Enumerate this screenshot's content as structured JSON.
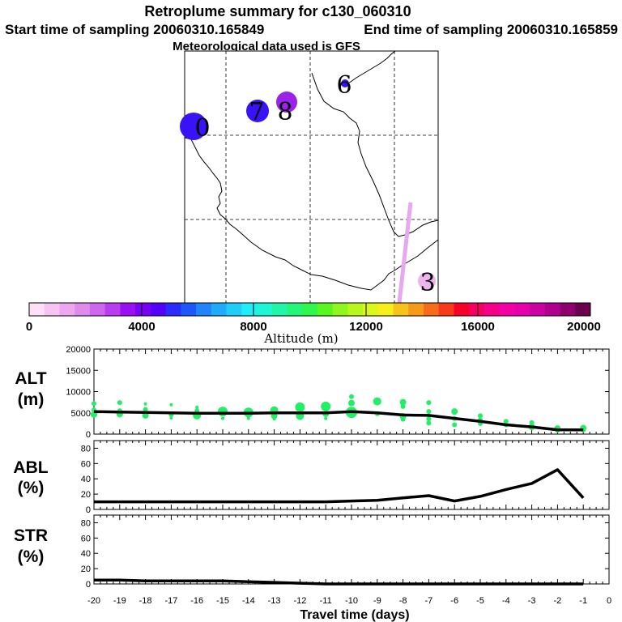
{
  "header": {
    "title": "Retroplume summary for c130_060310",
    "start_text": "Start time of sampling 20060310.165849",
    "end_text": "End time of sampling 20060310.165859",
    "met_text": "Meteorological data used is GFS"
  },
  "map": {
    "labels": [
      "0",
      "7",
      "8",
      "6",
      "3"
    ]
  },
  "colorbar": {
    "label": "Altitude (m)",
    "ticks": [
      "0",
      "4000",
      "8000",
      "12000",
      "16000",
      "20000"
    ],
    "colors": [
      "#fde0f5",
      "#f6c4f2",
      "#eea6f0",
      "#e08aee",
      "#cf66ef",
      "#b93cf0",
      "#9a10f2",
      "#7a00f5",
      "#5400f8",
      "#2a2cfc",
      "#1f56fb",
      "#2184fa",
      "#1fabf9",
      "#1fcdf9",
      "#1deef9",
      "#1df7d6",
      "#1ff7a6",
      "#22f77a",
      "#2ff74c",
      "#58f71f",
      "#8ff71d",
      "#b7f71b",
      "#dcf71a",
      "#f7ee1a",
      "#f7c31a",
      "#f79a1a",
      "#f76c1a",
      "#f73a1a",
      "#f7002a",
      "#f70062",
      "#f7008a",
      "#f500a6",
      "#e600ac",
      "#cd00a6",
      "#b0008f",
      "#8e006e",
      "#6b004e"
    ]
  },
  "alt_panel": {
    "label_line1": "ALT",
    "label_line2": "(m)"
  },
  "abl_panel": {
    "label_line1": "ABL",
    "label_line2": "(%)"
  },
  "str_panel": {
    "label_line1": "STR",
    "label_line2": "(%)"
  },
  "x_axis": {
    "title": "Travel time (days)",
    "tick_labels": [
      "-20",
      "-19",
      "-18",
      "-17",
      "-16",
      "-15",
      "-14",
      "-13",
      "-12",
      "-11",
      "-10",
      "-9",
      "-8",
      "-7",
      "-6",
      "-5",
      "-4",
      "-3",
      "-2",
      "-1",
      "0"
    ]
  },
  "chart_data": [
    {
      "type": "line",
      "panel": "ALT",
      "ylabel": "ALT (m)",
      "ylim": [
        0,
        20000
      ],
      "yticks": [
        "0",
        "5000",
        "10000",
        "15000",
        "20000"
      ],
      "xlim": [
        -20,
        0
      ],
      "x": [
        -20,
        -19,
        -18,
        -17,
        -16,
        -15,
        -14,
        -13,
        -12,
        -11,
        -10,
        -9,
        -8,
        -7,
        -6,
        -5,
        -4,
        -3,
        -2,
        -1
      ],
      "values": [
        5300,
        5200,
        5100,
        5000,
        4900,
        4900,
        4900,
        5000,
        5000,
        5000,
        5300,
        5000,
        4500,
        4400,
        3700,
        3000,
        2200,
        1700,
        1000,
        1000
      ],
      "point_color": "#22ee66",
      "scatter": [
        {
          "x": -20,
          "y": 7200,
          "s": 3
        },
        {
          "x": -20,
          "y": 4600,
          "s": 4
        },
        {
          "x": -20,
          "y": 5700,
          "s": 3
        },
        {
          "x": -19,
          "y": 7400,
          "s": 3
        },
        {
          "x": -19,
          "y": 4700,
          "s": 4
        },
        {
          "x": -19,
          "y": 5500,
          "s": 3
        },
        {
          "x": -18,
          "y": 7100,
          "s": 2
        },
        {
          "x": -18,
          "y": 4400,
          "s": 4
        },
        {
          "x": -18,
          "y": 5800,
          "s": 3
        },
        {
          "x": -17,
          "y": 6900,
          "s": 2
        },
        {
          "x": -17,
          "y": 4600,
          "s": 3
        },
        {
          "x": -17,
          "y": 3800,
          "s": 2
        },
        {
          "x": -16,
          "y": 6300,
          "s": 2
        },
        {
          "x": -16,
          "y": 4400,
          "s": 5
        },
        {
          "x": -16,
          "y": 5500,
          "s": 3
        },
        {
          "x": -15,
          "y": 5300,
          "s": 6
        },
        {
          "x": -15,
          "y": 3700,
          "s": 2
        },
        {
          "x": -14,
          "y": 5100,
          "s": 6
        },
        {
          "x": -14,
          "y": 3700,
          "s": 2
        },
        {
          "x": -13,
          "y": 5600,
          "s": 5
        },
        {
          "x": -13,
          "y": 4300,
          "s": 4
        },
        {
          "x": -13,
          "y": 3600,
          "s": 2
        },
        {
          "x": -12,
          "y": 6300,
          "s": 6
        },
        {
          "x": -12,
          "y": 4300,
          "s": 5
        },
        {
          "x": -12,
          "y": 3700,
          "s": 2
        },
        {
          "x": -11,
          "y": 6500,
          "s": 6
        },
        {
          "x": -11,
          "y": 4800,
          "s": 4
        },
        {
          "x": -11,
          "y": 3700,
          "s": 2
        },
        {
          "x": -10,
          "y": 8800,
          "s": 3
        },
        {
          "x": -10,
          "y": 7300,
          "s": 4
        },
        {
          "x": -10,
          "y": 5100,
          "s": 7
        },
        {
          "x": -9,
          "y": 7700,
          "s": 5
        },
        {
          "x": -9,
          "y": 4800,
          "s": 3
        },
        {
          "x": -8,
          "y": 7500,
          "s": 4
        },
        {
          "x": -8,
          "y": 6500,
          "s": 3
        },
        {
          "x": -8,
          "y": 4200,
          "s": 4
        },
        {
          "x": -8,
          "y": 3500,
          "s": 3
        },
        {
          "x": -7,
          "y": 7400,
          "s": 3
        },
        {
          "x": -7,
          "y": 5300,
          "s": 3
        },
        {
          "x": -7,
          "y": 3600,
          "s": 3
        },
        {
          "x": -7,
          "y": 2600,
          "s": 3
        },
        {
          "x": -6,
          "y": 5300,
          "s": 4
        },
        {
          "x": -6,
          "y": 3700,
          "s": 3
        },
        {
          "x": -6,
          "y": 2200,
          "s": 3
        },
        {
          "x": -5,
          "y": 4300,
          "s": 3
        },
        {
          "x": -5,
          "y": 3300,
          "s": 3
        },
        {
          "x": -5,
          "y": 2500,
          "s": 3
        },
        {
          "x": -4,
          "y": 3000,
          "s": 3
        },
        {
          "x": -4,
          "y": 2200,
          "s": 3
        },
        {
          "x": -3,
          "y": 2700,
          "s": 3
        },
        {
          "x": -3,
          "y": 1700,
          "s": 4
        },
        {
          "x": -2,
          "y": 1300,
          "s": 4
        },
        {
          "x": -2,
          "y": 900,
          "s": 3
        },
        {
          "x": -1,
          "y": 1400,
          "s": 4
        },
        {
          "x": -1,
          "y": 1000,
          "s": 3
        }
      ]
    },
    {
      "type": "line",
      "panel": "ABL",
      "ylabel": "ABL (%)",
      "ylim": [
        0,
        90
      ],
      "yticks": [
        "0",
        "20",
        "40",
        "60",
        "80"
      ],
      "xlim": [
        -20,
        0
      ],
      "x": [
        -20,
        -19,
        -18,
        -17,
        -16,
        -15,
        -14,
        -13,
        -12,
        -11,
        -10,
        -9,
        -8,
        -7,
        -6,
        -5,
        -4,
        -3,
        -2,
        -1
      ],
      "values": [
        10,
        10,
        10,
        10,
        10,
        10,
        10,
        10,
        10,
        10,
        11,
        12,
        15,
        18,
        11,
        17,
        26,
        34,
        52,
        15
      ]
    },
    {
      "type": "line",
      "panel": "STR",
      "ylabel": "STR (%)",
      "ylim": [
        0,
        90
      ],
      "yticks": [
        "0",
        "20",
        "40",
        "60",
        "80"
      ],
      "xlim": [
        -20,
        0
      ],
      "x": [
        -20,
        -19,
        -18,
        -17,
        -16,
        -15,
        -14,
        -13,
        -12,
        -11,
        -10,
        -9,
        -8,
        -7,
        -6,
        -5,
        -4,
        -3,
        -2,
        -1
      ],
      "values": [
        5,
        5,
        4,
        4,
        4,
        4,
        3,
        2,
        1,
        0,
        0,
        0,
        0,
        0,
        0,
        0,
        0,
        0,
        0,
        0
      ]
    }
  ]
}
